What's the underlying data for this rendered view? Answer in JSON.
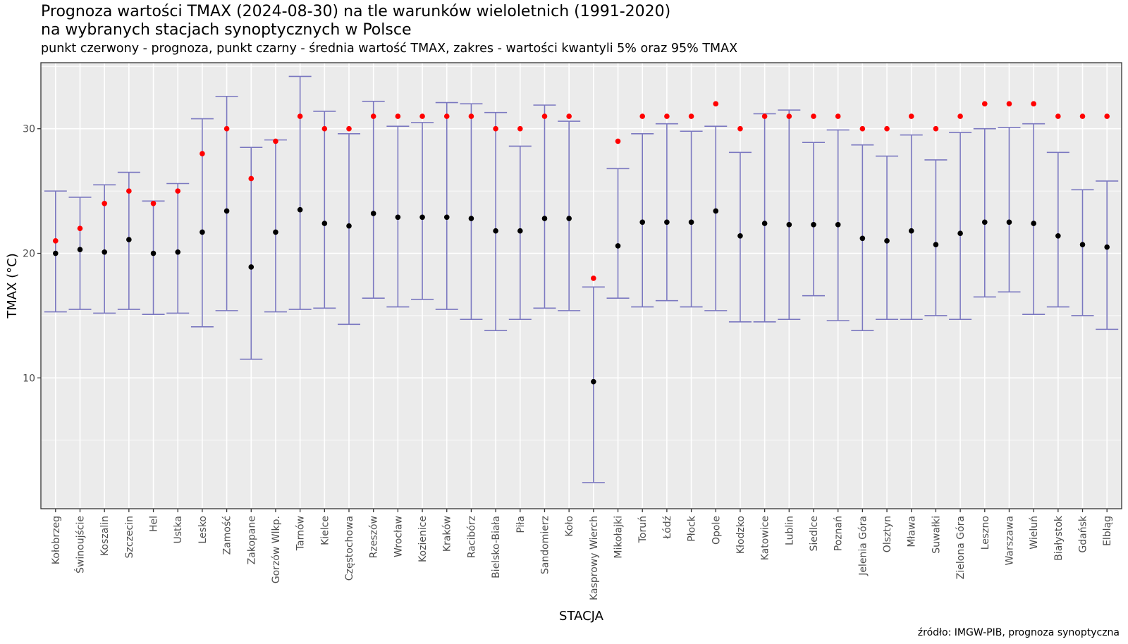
{
  "chart_data": {
    "type": "errorbar",
    "title": "Prognoza wartości TMAX (2024-08-30) na tle warunków wieloletnich (1991-2020)",
    "title_line2": "na wybranych stacjach synoptycznych w Polsce",
    "subtitle": "punkt czerwony - prognoza, punkt czarny - średnia wartość TMAX, zakres - wartości kwantyli 5% oraz 95% TMAX",
    "caption": "źródło: IMGW-PIB, prognoza synoptyczna",
    "xlabel": "STACJA",
    "ylabel": "TMAX (°C)",
    "ylim": [
      -0.5,
      35.3
    ],
    "yticks": [
      10,
      20,
      30
    ],
    "grid": true,
    "legend": "none",
    "colors": {
      "panel": "#ebebeb",
      "grid": "#ffffff",
      "errorbar": "#7b78c0",
      "forecast": "#ff0000",
      "mean": "#000000"
    },
    "stations": [
      {
        "name": "Kołobrzeg",
        "forecast": 21,
        "mean": 20.0,
        "q05": 15.3,
        "q95": 25.0
      },
      {
        "name": "Świnoujście",
        "forecast": 22,
        "mean": 20.3,
        "q05": 15.5,
        "q95": 24.5
      },
      {
        "name": "Koszalin",
        "forecast": 24,
        "mean": 20.1,
        "q05": 15.2,
        "q95": 25.5
      },
      {
        "name": "Szczecin",
        "forecast": 25,
        "mean": 21.1,
        "q05": 15.5,
        "q95": 26.5
      },
      {
        "name": "Hel",
        "forecast": 24,
        "mean": 20.0,
        "q05": 15.1,
        "q95": 24.2
      },
      {
        "name": "Ustka",
        "forecast": 25,
        "mean": 20.1,
        "q05": 15.2,
        "q95": 25.6
      },
      {
        "name": "Lesko",
        "forecast": 28,
        "mean": 21.7,
        "q05": 14.1,
        "q95": 30.8
      },
      {
        "name": "Zamość",
        "forecast": 30,
        "mean": 23.4,
        "q05": 15.4,
        "q95": 32.6
      },
      {
        "name": "Zakopane",
        "forecast": 26,
        "mean": 18.9,
        "q05": 11.5,
        "q95": 28.5
      },
      {
        "name": "Gorzów Wlkp.",
        "forecast": 29,
        "mean": 21.7,
        "q05": 15.3,
        "q95": 29.1
      },
      {
        "name": "Tarnów",
        "forecast": 31,
        "mean": 23.5,
        "q05": 15.5,
        "q95": 34.2
      },
      {
        "name": "Kielce",
        "forecast": 30,
        "mean": 22.4,
        "q05": 15.6,
        "q95": 31.4
      },
      {
        "name": "Częstochowa",
        "forecast": 30,
        "mean": 22.2,
        "q05": 14.3,
        "q95": 29.6
      },
      {
        "name": "Rzeszów",
        "forecast": 31,
        "mean": 23.2,
        "q05": 16.4,
        "q95": 32.2
      },
      {
        "name": "Wrocław",
        "forecast": 31,
        "mean": 22.9,
        "q05": 15.7,
        "q95": 30.2
      },
      {
        "name": "Kozienice",
        "forecast": 31,
        "mean": 22.9,
        "q05": 16.3,
        "q95": 30.5
      },
      {
        "name": "Kraków",
        "forecast": 31,
        "mean": 22.9,
        "q05": 15.5,
        "q95": 32.1
      },
      {
        "name": "Racibórz",
        "forecast": 31,
        "mean": 22.8,
        "q05": 14.7,
        "q95": 32.0
      },
      {
        "name": "Bielsko-Biała",
        "forecast": 30,
        "mean": 21.8,
        "q05": 13.8,
        "q95": 31.3
      },
      {
        "name": "Piła",
        "forecast": 30,
        "mean": 21.8,
        "q05": 14.7,
        "q95": 28.6
      },
      {
        "name": "Sandomierz",
        "forecast": 31,
        "mean": 22.8,
        "q05": 15.6,
        "q95": 31.9
      },
      {
        "name": "Koło",
        "forecast": 31,
        "mean": 22.8,
        "q05": 15.4,
        "q95": 30.6
      },
      {
        "name": "Kasprowy Wierch",
        "forecast": 18,
        "mean": 9.7,
        "q05": 1.6,
        "q95": 17.3
      },
      {
        "name": "Mikołajki",
        "forecast": 29,
        "mean": 20.6,
        "q05": 16.4,
        "q95": 26.8
      },
      {
        "name": "Toruń",
        "forecast": 31,
        "mean": 22.5,
        "q05": 15.7,
        "q95": 29.6
      },
      {
        "name": "Łódź",
        "forecast": 31,
        "mean": 22.5,
        "q05": 16.2,
        "q95": 30.4
      },
      {
        "name": "Płock",
        "forecast": 31,
        "mean": 22.5,
        "q05": 15.7,
        "q95": 29.8
      },
      {
        "name": "Opole",
        "forecast": 32,
        "mean": 23.4,
        "q05": 15.4,
        "q95": 30.2
      },
      {
        "name": "Kłodzko",
        "forecast": 30,
        "mean": 21.4,
        "q05": 14.5,
        "q95": 28.1
      },
      {
        "name": "Katowice",
        "forecast": 31,
        "mean": 22.4,
        "q05": 14.5,
        "q95": 31.2
      },
      {
        "name": "Lublin",
        "forecast": 31,
        "mean": 22.3,
        "q05": 14.7,
        "q95": 31.5
      },
      {
        "name": "Siedlce",
        "forecast": 31,
        "mean": 22.3,
        "q05": 16.6,
        "q95": 28.9
      },
      {
        "name": "Poznań",
        "forecast": 31,
        "mean": 22.3,
        "q05": 14.6,
        "q95": 29.9
      },
      {
        "name": "Jelenia Góra",
        "forecast": 30,
        "mean": 21.2,
        "q05": 13.8,
        "q95": 28.7
      },
      {
        "name": "Olsztyn",
        "forecast": 30,
        "mean": 21.0,
        "q05": 14.7,
        "q95": 27.8
      },
      {
        "name": "Mława",
        "forecast": 31,
        "mean": 21.8,
        "q05": 14.7,
        "q95": 29.5
      },
      {
        "name": "Suwałki",
        "forecast": 30,
        "mean": 20.7,
        "q05": 15.0,
        "q95": 27.5
      },
      {
        "name": "Zielona Góra",
        "forecast": 31,
        "mean": 21.6,
        "q05": 14.7,
        "q95": 29.7
      },
      {
        "name": "Leszno",
        "forecast": 32,
        "mean": 22.5,
        "q05": 16.5,
        "q95": 30.0
      },
      {
        "name": "Warszawa",
        "forecast": 32,
        "mean": 22.5,
        "q05": 16.9,
        "q95": 30.1
      },
      {
        "name": "Wieluń",
        "forecast": 32,
        "mean": 22.4,
        "q05": 15.1,
        "q95": 30.4
      },
      {
        "name": "Białystok",
        "forecast": 31,
        "mean": 21.4,
        "q05": 15.7,
        "q95": 28.1
      },
      {
        "name": "Gdańsk",
        "forecast": 31,
        "mean": 20.7,
        "q05": 15.0,
        "q95": 25.1
      },
      {
        "name": "Elbląg",
        "forecast": 31,
        "mean": 20.5,
        "q05": 13.9,
        "q95": 25.8
      }
    ]
  }
}
